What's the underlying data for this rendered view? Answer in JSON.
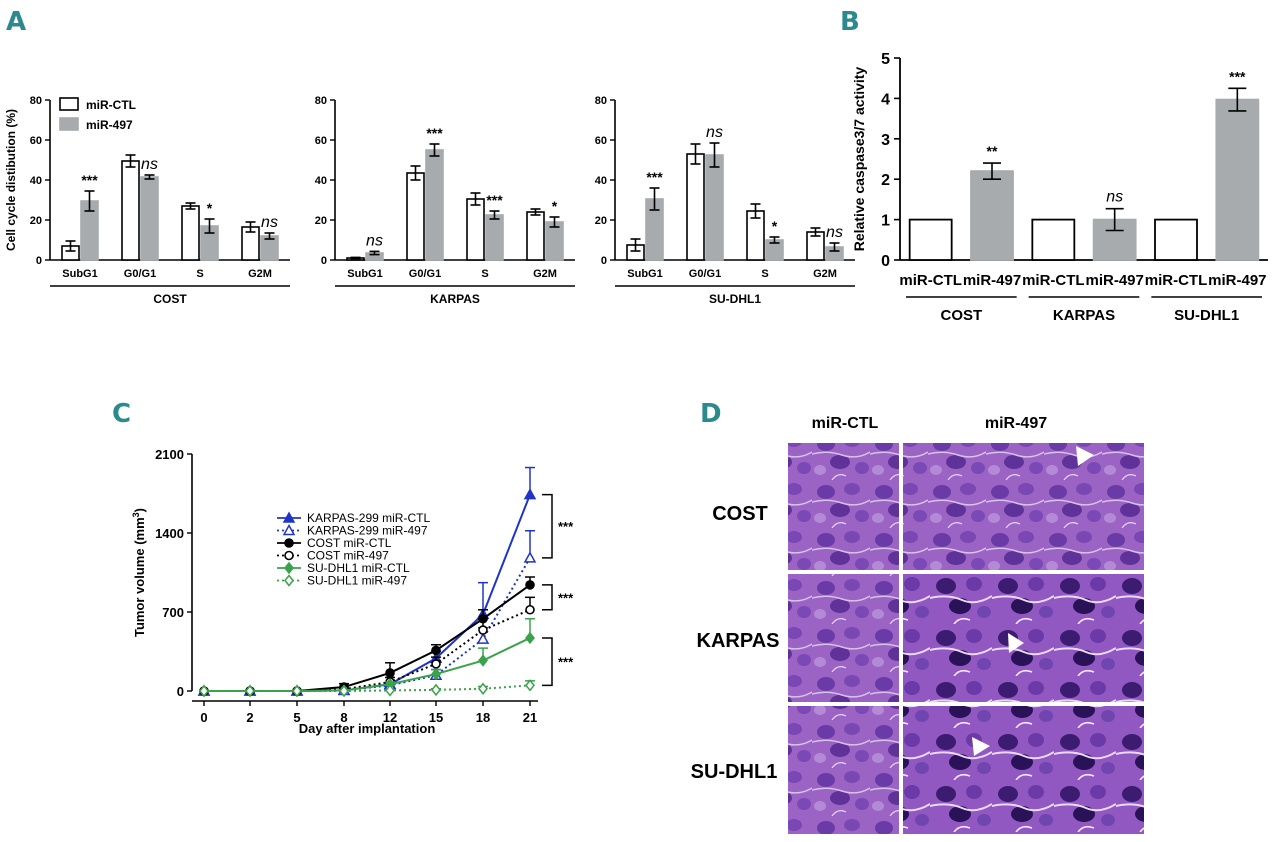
{
  "colors": {
    "ctl": "#ffffff",
    "m497": "#a7abae",
    "axis": "#000000",
    "teal": "#2b8a8d",
    "karpas": "#2035c8",
    "cost": "#000000",
    "sudhl": "#3aa24a"
  },
  "panels": {
    "a": "A",
    "b": "B",
    "c": "C",
    "d": "D"
  },
  "chart_data": [
    {
      "id": "A1",
      "type": "bar",
      "cell_line": "COST",
      "ylabel": "Cell cycle distibution (%)",
      "ylim": [
        0,
        80
      ],
      "yticks": [
        0,
        20,
        40,
        60,
        80
      ],
      "categories": [
        "SubG1",
        "G0/G1",
        "S",
        "G2M"
      ],
      "legend": [
        "miR-CTL",
        "miR-497"
      ],
      "series": [
        {
          "name": "miR-CTL",
          "values": [
            7,
            49.5,
            27,
            16.5
          ],
          "errors": [
            2.5,
            3,
            1.5,
            2.5
          ]
        },
        {
          "name": "miR-497",
          "values": [
            29.5,
            41.5,
            17,
            12
          ],
          "errors": [
            5,
            1,
            3.5,
            1.5
          ]
        }
      ],
      "significance": [
        "***",
        "ns",
        "*",
        "ns"
      ]
    },
    {
      "id": "A2",
      "type": "bar",
      "cell_line": "KARPAS",
      "ylim": [
        0,
        80
      ],
      "yticks": [
        0,
        20,
        40,
        60,
        80
      ],
      "categories": [
        "SubG1",
        "G0/G1",
        "S",
        "G2M"
      ],
      "series": [
        {
          "name": "miR-CTL",
          "values": [
            1,
            43.5,
            30.5,
            24
          ],
          "errors": [
            0.3,
            3.5,
            3,
            1.5
          ]
        },
        {
          "name": "miR-497",
          "values": [
            3.5,
            55,
            22.5,
            19
          ],
          "errors": [
            0.8,
            3,
            2,
            2.5
          ]
        }
      ],
      "significance": [
        "ns",
        "***",
        "***",
        "*"
      ]
    },
    {
      "id": "A3",
      "type": "bar",
      "cell_line": "SU-DHL1",
      "ylim": [
        0,
        80
      ],
      "yticks": [
        0,
        20,
        40,
        60,
        80
      ],
      "categories": [
        "SubG1",
        "G0/G1",
        "S",
        "G2M"
      ],
      "series": [
        {
          "name": "miR-CTL",
          "values": [
            7.5,
            53,
            24.5,
            14
          ],
          "errors": [
            3,
            5,
            3.5,
            2
          ]
        },
        {
          "name": "miR-497",
          "values": [
            30.5,
            52.5,
            10,
            6.5
          ],
          "errors": [
            5.5,
            6,
            1.5,
            2
          ]
        }
      ],
      "significance": [
        "***",
        "ns",
        "*",
        "ns"
      ]
    },
    {
      "id": "B",
      "type": "bar",
      "ylabel": "Relative caspase3/7 activity",
      "ylim": [
        0,
        5
      ],
      "yticks": [
        0,
        1,
        2,
        3,
        4,
        5
      ],
      "bars": [
        {
          "label": "miR-CTL",
          "group": "COST",
          "value": 1,
          "error": 0,
          "fill": "ctl",
          "sig": ""
        },
        {
          "label": "miR-497",
          "group": "COST",
          "value": 2.2,
          "error": 0.2,
          "fill": "m497",
          "sig": "**"
        },
        {
          "label": "miR-CTL",
          "group": "KARPAS",
          "value": 1,
          "error": 0,
          "fill": "ctl",
          "sig": ""
        },
        {
          "label": "miR-497",
          "group": "KARPAS",
          "value": 1,
          "error": 0.27,
          "fill": "m497",
          "sig": "ns"
        },
        {
          "label": "miR-CTL",
          "group": "SU-DHL1",
          "value": 1,
          "error": 0,
          "fill": "ctl",
          "sig": ""
        },
        {
          "label": "miR-497",
          "group": "SU-DHL1",
          "value": 3.97,
          "error": 0.28,
          "fill": "m497",
          "sig": "***"
        }
      ],
      "groups": [
        "COST",
        "KARPAS",
        "SU-DHL1"
      ]
    },
    {
      "id": "C",
      "type": "line",
      "xlabel": "Day after implantation",
      "ylabel": "Tumor volume (mm",
      "ylabel_sup": "3",
      "ylabel_end": ")",
      "x": [
        0,
        2,
        5,
        8,
        12,
        15,
        18,
        21
      ],
      "ylim": [
        0,
        2100
      ],
      "yticks": [
        0,
        700,
        1400,
        2100
      ],
      "series": [
        {
          "name": "KARPAS-299  miR-CTL",
          "color": "karpas",
          "dashed": false,
          "marker": "triangle",
          "filled": true,
          "values": [
            0,
            0,
            0,
            5,
            60,
            290,
            680,
            1740
          ],
          "errors": [
            0,
            0,
            0,
            5,
            20,
            60,
            280,
            240
          ]
        },
        {
          "name": "KARPAS-299  miR-497",
          "color": "karpas",
          "dashed": true,
          "marker": "triangle",
          "filled": false,
          "values": [
            0,
            0,
            0,
            5,
            50,
            140,
            460,
            1180
          ],
          "errors": [
            0,
            0,
            0,
            5,
            20,
            50,
            100,
            240
          ]
        },
        {
          "name": "COST miR-CTL",
          "color": "cost",
          "dashed": false,
          "marker": "circle",
          "filled": true,
          "values": [
            0,
            0,
            0,
            35,
            160,
            360,
            640,
            940
          ],
          "errors": [
            0,
            0,
            0,
            30,
            90,
            50,
            80,
            70
          ]
        },
        {
          "name": "COST miR-497",
          "color": "cost",
          "dashed": true,
          "marker": "circle",
          "filled": false,
          "values": [
            0,
            0,
            0,
            15,
            80,
            240,
            540,
            720
          ],
          "errors": [
            0,
            0,
            0,
            10,
            40,
            60,
            100,
            110
          ]
        },
        {
          "name": "SU-DHL1 miR-CTL",
          "color": "sudhl",
          "dashed": false,
          "marker": "diamond",
          "filled": true,
          "values": [
            0,
            0,
            0,
            5,
            60,
            150,
            270,
            470
          ],
          "errors": [
            0,
            0,
            0,
            5,
            20,
            40,
            110,
            170
          ]
        },
        {
          "name": "SU-DHL1 miR-497",
          "color": "sudhl",
          "dashed": true,
          "marker": "diamond",
          "filled": false,
          "values": [
            0,
            0,
            0,
            0,
            5,
            10,
            20,
            50
          ],
          "errors": [
            0,
            0,
            0,
            0,
            5,
            10,
            20,
            40
          ]
        }
      ],
      "significance": [
        "***",
        "***",
        "***"
      ]
    }
  ],
  "histology": {
    "columns": [
      "miR-CTL",
      "miR-497"
    ],
    "rows": [
      "COST",
      "KARPAS",
      "SU-DHL1"
    ]
  }
}
